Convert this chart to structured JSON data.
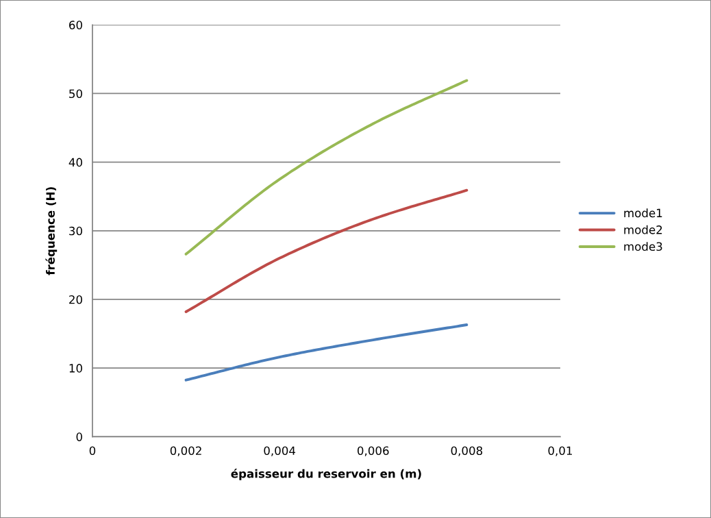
{
  "chart_data": {
    "type": "line",
    "xlabel": "épaisseur du reservoir en (m)",
    "ylabel": "fréquence (H)",
    "x": [
      0.002,
      0.004,
      0.006,
      0.008
    ],
    "series": [
      {
        "name": "mode1",
        "color": "#4a7ebb",
        "values": [
          8.25,
          11.6,
          14.1,
          16.3
        ]
      },
      {
        "name": "mode2",
        "color": "#be4b48",
        "values": [
          18.2,
          26.0,
          31.7,
          35.9
        ]
      },
      {
        "name": "mode3",
        "color": "#98b954",
        "values": [
          26.6,
          37.5,
          45.6,
          51.9
        ]
      }
    ],
    "xlim": [
      0,
      0.01
    ],
    "xticks": [
      {
        "value": 0,
        "label": "0"
      },
      {
        "value": 0.002,
        "label": "0,002"
      },
      {
        "value": 0.004,
        "label": "0,004"
      },
      {
        "value": 0.006,
        "label": "0,006"
      },
      {
        "value": 0.008,
        "label": "0,008"
      },
      {
        "value": 0.01,
        "label": "0,01"
      }
    ],
    "ylim": [
      0,
      60
    ],
    "yticks": [
      0,
      10,
      20,
      30,
      40,
      50,
      60
    ],
    "grid": "y",
    "legend": "right",
    "marker": "none",
    "line_style": "solid"
  }
}
